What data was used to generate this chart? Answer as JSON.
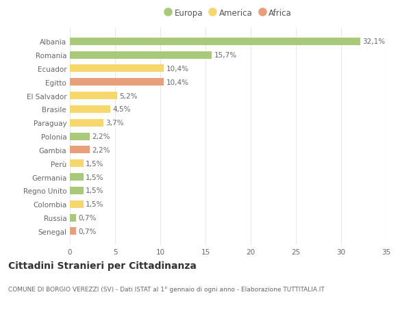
{
  "categories": [
    "Albania",
    "Romania",
    "Ecuador",
    "Egitto",
    "El Salvador",
    "Brasile",
    "Paraguay",
    "Polonia",
    "Gambia",
    "Perù",
    "Germania",
    "Regno Unito",
    "Colombia",
    "Russia",
    "Senegal"
  ],
  "values": [
    32.1,
    15.7,
    10.4,
    10.4,
    5.2,
    4.5,
    3.7,
    2.2,
    2.2,
    1.5,
    1.5,
    1.5,
    1.5,
    0.7,
    0.7
  ],
  "labels": [
    "32,1%",
    "15,7%",
    "10,4%",
    "10,4%",
    "5,2%",
    "4,5%",
    "3,7%",
    "2,2%",
    "2,2%",
    "1,5%",
    "1,5%",
    "1,5%",
    "1,5%",
    "0,7%",
    "0,7%"
  ],
  "continents": [
    "Europa",
    "Europa",
    "America",
    "Africa",
    "America",
    "America",
    "America",
    "Europa",
    "Africa",
    "America",
    "Europa",
    "Europa",
    "America",
    "Europa",
    "Africa"
  ],
  "colors": {
    "Europa": "#a8c87a",
    "America": "#f5d76e",
    "Africa": "#e8a07a"
  },
  "legend_order": [
    "Europa",
    "America",
    "Africa"
  ],
  "legend_colors": [
    "#a8c87a",
    "#f5d76e",
    "#e8a07a"
  ],
  "legend_labels": [
    "Europa",
    "America",
    "Africa"
  ],
  "title": "Cittadini Stranieri per Cittadinanza",
  "subtitle": "COMUNE DI BORGIO VEREZZI (SV) - Dati ISTAT al 1° gennaio di ogni anno - Elaborazione TUTTITALIA.IT",
  "xlim": [
    0,
    35
  ],
  "xticks": [
    0,
    5,
    10,
    15,
    20,
    25,
    30,
    35
  ],
  "background_color": "#ffffff",
  "grid_color": "#e8e8e8",
  "bar_height": 0.55,
  "label_fontsize": 7.5,
  "tick_fontsize": 7.5,
  "title_fontsize": 10,
  "subtitle_fontsize": 6.5,
  "legend_fontsize": 8.5
}
